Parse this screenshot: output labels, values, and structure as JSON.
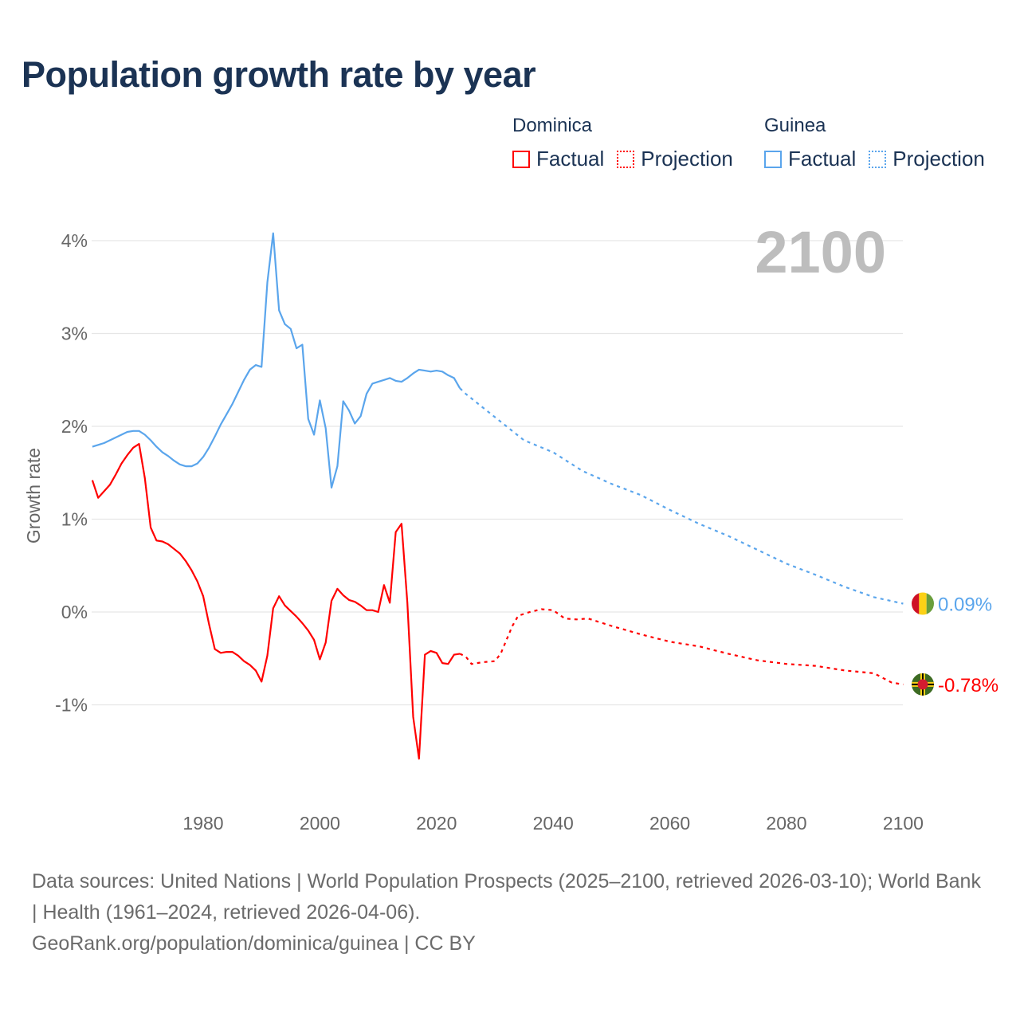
{
  "title": "Population growth rate by year",
  "legend": {
    "groups": [
      {
        "name": "Dominica",
        "color": "#ff0000",
        "factual": "Factual",
        "projection": "Projection"
      },
      {
        "name": "Guinea",
        "color": "#5aa5ec",
        "factual": "Factual",
        "projection": "Projection"
      }
    ]
  },
  "footer": {
    "sources": "Data sources: United Nations | World Population Prospects (2025–2100, retrieved 2026-03-10); World Bank | Health (1961–2024, retrieved 2026-04-06).",
    "credit": "GeoRank.org/population/dominica/guinea | CC BY"
  },
  "chart_data": {
    "type": "line",
    "title": "Population growth rate by year",
    "ylabel": "Growth rate",
    "xlabel": "",
    "year_label": "2100",
    "xlim": [
      1960,
      2100
    ],
    "ylim": [
      -2,
      4.1
    ],
    "x_ticks": [
      1980,
      2000,
      2020,
      2040,
      2060,
      2080,
      2100
    ],
    "y_ticks": [
      -1,
      0,
      1,
      2,
      3,
      4
    ],
    "y_tick_labels": [
      "-1%",
      "0%",
      "1%",
      "2%",
      "3%",
      "4%"
    ],
    "grid": true,
    "legend_position": "top-right",
    "series": [
      {
        "name": "Guinea",
        "color": "#5aa5ec",
        "end_label": "0.09%",
        "factual": {
          "x": [
            1961,
            1962,
            1963,
            1964,
            1965,
            1966,
            1967,
            1968,
            1969,
            1970,
            1971,
            1972,
            1973,
            1974,
            1975,
            1976,
            1977,
            1978,
            1979,
            1980,
            1981,
            1982,
            1983,
            1984,
            1985,
            1986,
            1987,
            1988,
            1989,
            1990,
            1991,
            1992,
            1993,
            1994,
            1995,
            1996,
            1997,
            1998,
            1999,
            2000,
            2001,
            2002,
            2003,
            2004,
            2005,
            2006,
            2007,
            2008,
            2009,
            2010,
            2011,
            2012,
            2013,
            2014,
            2015,
            2016,
            2017,
            2018,
            2019,
            2020,
            2021,
            2022,
            2023,
            2024
          ],
          "y": [
            1.78,
            1.8,
            1.82,
            1.85,
            1.88,
            1.91,
            1.94,
            1.95,
            1.95,
            1.91,
            1.85,
            1.78,
            1.72,
            1.68,
            1.63,
            1.59,
            1.57,
            1.57,
            1.6,
            1.67,
            1.77,
            1.89,
            2.02,
            2.13,
            2.24,
            2.37,
            2.5,
            2.61,
            2.66,
            2.64,
            3.55,
            4.08,
            3.25,
            3.1,
            3.05,
            2.84,
            2.88,
            2.08,
            1.91,
            2.28,
            1.98,
            1.34,
            1.57,
            2.27,
            2.17,
            2.03,
            2.11,
            2.35,
            2.46,
            2.48,
            2.5,
            2.52,
            2.49,
            2.48,
            2.52,
            2.57,
            2.61,
            2.6,
            2.59,
            2.6,
            2.59,
            2.55,
            2.52,
            2.41
          ]
        },
        "projection": {
          "x": [
            2024,
            2025,
            2030,
            2035,
            2040,
            2045,
            2050,
            2055,
            2060,
            2065,
            2070,
            2075,
            2080,
            2085,
            2090,
            2095,
            2100
          ],
          "y": [
            2.41,
            2.35,
            2.1,
            1.85,
            1.72,
            1.52,
            1.38,
            1.26,
            1.1,
            0.95,
            0.82,
            0.67,
            0.52,
            0.4,
            0.27,
            0.16,
            0.09
          ]
        }
      },
      {
        "name": "Dominica",
        "color": "#ff0000",
        "end_label": "-0.78%",
        "factual": {
          "x": [
            1961,
            1962,
            1963,
            1964,
            1965,
            1966,
            1967,
            1968,
            1969,
            1970,
            1971,
            1972,
            1973,
            1974,
            1975,
            1976,
            1977,
            1978,
            1979,
            1980,
            1981,
            1982,
            1983,
            1984,
            1985,
            1986,
            1987,
            1988,
            1989,
            1990,
            1991,
            1992,
            1993,
            1994,
            1995,
            1996,
            1997,
            1998,
            1999,
            2000,
            2001,
            2002,
            2003,
            2004,
            2005,
            2006,
            2007,
            2008,
            2009,
            2010,
            2011,
            2012,
            2013,
            2014,
            2015,
            2016,
            2017,
            2018,
            2019,
            2020,
            2021,
            2022,
            2023,
            2024
          ],
          "y": [
            1.42,
            1.23,
            1.3,
            1.37,
            1.48,
            1.6,
            1.69,
            1.77,
            1.81,
            1.44,
            0.91,
            0.77,
            0.76,
            0.73,
            0.68,
            0.63,
            0.55,
            0.45,
            0.33,
            0.17,
            -0.13,
            -0.4,
            -0.44,
            -0.43,
            -0.43,
            -0.47,
            -0.53,
            -0.57,
            -0.63,
            -0.75,
            -0.47,
            0.04,
            0.17,
            0.07,
            0.01,
            -0.05,
            -0.12,
            -0.2,
            -0.3,
            -0.51,
            -0.33,
            0.12,
            0.25,
            0.18,
            0.13,
            0.11,
            0.07,
            0.02,
            0.02,
            0.0,
            0.29,
            0.1,
            0.86,
            0.95,
            0.1,
            -1.13,
            -1.58,
            -0.46,
            -0.42,
            -0.44,
            -0.55,
            -0.56,
            -0.46,
            -0.45
          ]
        },
        "projection": {
          "x": [
            2024,
            2025,
            2026,
            2028,
            2030,
            2031,
            2032,
            2033,
            2034,
            2036,
            2038,
            2040,
            2042,
            2044,
            2046,
            2050,
            2055,
            2060,
            2065,
            2070,
            2075,
            2080,
            2085,
            2090,
            2095,
            2098,
            2100
          ],
          "y": [
            -0.45,
            -0.48,
            -0.56,
            -0.54,
            -0.53,
            -0.45,
            -0.3,
            -0.15,
            -0.04,
            0.0,
            0.03,
            0.02,
            -0.07,
            -0.08,
            -0.07,
            -0.15,
            -0.24,
            -0.32,
            -0.37,
            -0.45,
            -0.52,
            -0.56,
            -0.58,
            -0.63,
            -0.66,
            -0.76,
            -0.78
          ]
        }
      }
    ]
  }
}
